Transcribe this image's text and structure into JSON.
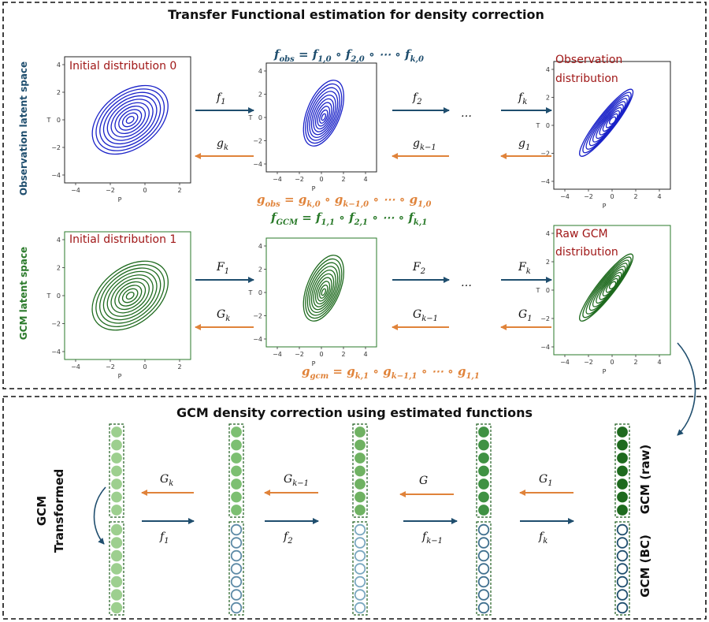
{
  "colors": {
    "blue": "#1f4e6e",
    "orange": "#e0833a",
    "green": "#2a7a2a",
    "darkgreen": "#1e5e1e",
    "lightgreen": "#9dcf8f",
    "red": "#a01818",
    "contourBlue": "#1a22c8",
    "contourGreen": "#1e6a1e"
  },
  "titles": {
    "top": "Transfer Functional estimation for density correction",
    "bottom": "GCM density correction using estimated functions"
  },
  "side_labels": {
    "obs": "Observation latent space",
    "gcm": "GCM latent space",
    "gcm_transformed_1": "GCM",
    "gcm_transformed_2": "Transformed",
    "gcm_raw": "GCM (raw)",
    "gcm_bc": "GCM (BC)"
  },
  "plots": {
    "init0": "Initial distribution 0",
    "obs_1": "Observation",
    "obs_2": "distribution",
    "init1": "Initial distribution 1",
    "raw_1": "Raw GCM",
    "raw_2": "distribution",
    "axis_p": "P",
    "axis_t": "T"
  },
  "ticks": {
    "big": [
      "4",
      "2",
      "0",
      "−2",
      "−4"
    ],
    "small": [
      "4",
      "2",
      "0",
      "−2",
      "−4"
    ],
    "x_big": [
      "−4",
      "−2",
      "0",
      "2"
    ],
    "x_small": [
      "−4",
      "−2",
      "0",
      "2",
      "4"
    ]
  },
  "equations": {
    "f_obs": {
      "lhs": "f",
      "sub": "obs",
      "rhs": "= f",
      "parts": [
        [
          "f",
          "1,0"
        ],
        [
          "f",
          "2,0"
        ],
        [
          "f",
          "k,0"
        ]
      ]
    },
    "g_obs": {
      "lhs": "g",
      "sub": "obs",
      "parts": [
        [
          "g",
          "k,0"
        ],
        [
          "g",
          "k−1,0"
        ],
        [
          "g",
          "1,0"
        ]
      ]
    },
    "f_gcm": {
      "lhs": "f",
      "sub": "GCM",
      "parts": [
        [
          "f",
          "1,1"
        ],
        [
          "f",
          "2,1"
        ],
        [
          "f",
          "k,1"
        ]
      ]
    },
    "g_gcm": {
      "lhs": "g",
      "sub": "gcm",
      "parts": [
        [
          "g",
          "k,1"
        ],
        [
          "g",
          "k−1,1"
        ],
        [
          "g",
          "1,1"
        ]
      ]
    },
    "compose": "∘ ⋯ ∘",
    "ring": "∘",
    "equals": "="
  },
  "arrows": {
    "top": [
      {
        "main": "f",
        "sub": "1"
      },
      {
        "main": "g",
        "sub": "k"
      },
      {
        "main": "f",
        "sub": "2"
      },
      {
        "main": "g",
        "sub": "k−1"
      },
      {
        "main": "f",
        "sub": "k"
      },
      {
        "main": "g",
        "sub": "1"
      }
    ],
    "mid": [
      {
        "main": "F",
        "sub": "1"
      },
      {
        "main": "G",
        "sub": "k"
      },
      {
        "main": "F",
        "sub": "2"
      },
      {
        "main": "G",
        "sub": "k−1"
      },
      {
        "main": "F",
        "sub": "k"
      },
      {
        "main": "G",
        "sub": "1"
      }
    ],
    "bottom_orange": [
      {
        "main": "G",
        "sub": "k"
      },
      {
        "main": "G",
        "sub": "k−1"
      },
      {
        "main": "G",
        "sub": ""
      },
      {
        "main": "G",
        "sub": "1"
      }
    ],
    "bottom_blue": [
      {
        "main": "f",
        "sub": "1"
      },
      {
        "main": "f",
        "sub": "2"
      },
      {
        "main": "f",
        "sub": "k−1"
      },
      {
        "main": "f",
        "sub": "k"
      }
    ],
    "ellipsis": "…"
  }
}
